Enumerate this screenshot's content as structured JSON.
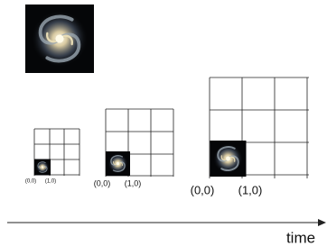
{
  "panels": [
    {
      "origin_label": "(0,0)",
      "unit_label": "(1,0)"
    },
    {
      "origin_label": "(0,0)",
      "unit_label": "(1,0)"
    },
    {
      "origin_label": "(0,0)",
      "unit_label": "(1,0)"
    }
  ],
  "axis": {
    "label": "time"
  }
}
